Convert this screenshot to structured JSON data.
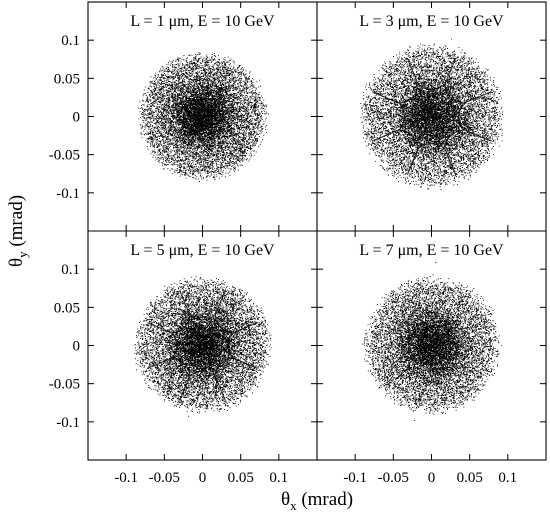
{
  "figure": {
    "ylabel_main": "θ",
    "ylabel_sub": "y",
    "ylabel_unit": " (mrad)",
    "xlabel_main": "θ",
    "xlabel_sub": "x",
    "xlabel_unit": " (mrad)"
  },
  "axis_ticks": {
    "y": [
      {
        "value": 0.1,
        "label": "0.1"
      },
      {
        "value": 0.05,
        "label": "0.05"
      },
      {
        "value": 0,
        "label": "0"
      },
      {
        "value": -0.05,
        "label": "-0.05"
      },
      {
        "value": -0.1,
        "label": "-0.1"
      }
    ],
    "x": [
      {
        "value": -0.1,
        "label": "-0.1"
      },
      {
        "value": -0.05,
        "label": "-0.05"
      },
      {
        "value": 0,
        "label": "0"
      },
      {
        "value": 0.05,
        "label": "0.05"
      },
      {
        "value": 0.1,
        "label": "0.1"
      }
    ]
  },
  "chart_data": [
    {
      "type": "scatter",
      "title": "L = 1 μm, E = 10 GeV",
      "xlim": [
        -0.15,
        0.15
      ],
      "ylim": [
        -0.15,
        0.15
      ],
      "radius_mrad": 0.08,
      "points": 12000,
      "caustic_spokes": 0,
      "spoke_color": "#000000",
      "point_color": "#000000"
    },
    {
      "type": "scatter",
      "title": "L = 3 μm, E = 10 GeV",
      "xlim": [
        -0.15,
        0.15
      ],
      "ylim": [
        -0.15,
        0.15
      ],
      "radius_mrad": 0.09,
      "points": 12000,
      "caustic_spokes": 8,
      "spoke_color": "#000000",
      "point_color": "#000000"
    },
    {
      "type": "scatter",
      "title": "L = 5 μm, E = 10 GeV",
      "xlim": [
        -0.15,
        0.15
      ],
      "ylim": [
        -0.15,
        0.15
      ],
      "radius_mrad": 0.085,
      "points": 12000,
      "caustic_spokes": 8,
      "spoke_color": "#000000",
      "point_color": "#000000"
    },
    {
      "type": "scatter",
      "title": "L = 7 μm, E = 10 GeV",
      "xlim": [
        -0.15,
        0.15
      ],
      "ylim": [
        -0.15,
        0.15
      ],
      "radius_mrad": 0.085,
      "points": 12000,
      "caustic_spokes": 0,
      "spoke_color": "#000000",
      "point_color": "#000000"
    }
  ]
}
